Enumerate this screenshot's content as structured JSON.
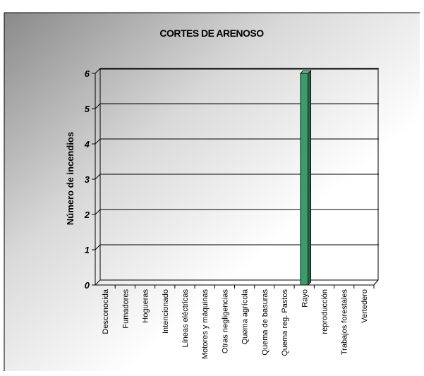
{
  "chart_data": {
    "type": "bar",
    "title": "CORTES DE ARENOSO",
    "xlabel": "",
    "ylabel": "Número de incendios",
    "ylim": [
      0,
      6
    ],
    "yticks": [
      "0",
      "1",
      "2",
      "3",
      "4",
      "5",
      "6"
    ],
    "grid": true,
    "legend": "none",
    "categories": [
      "Desconocida",
      "Fumadores",
      "Hogueras",
      "Intencionado",
      "Líneas eléctricas",
      "Motores y máquinas",
      "Otras negligencias",
      "Quema agrícola",
      "Quema de basuras",
      "Quema reg. Pastos",
      "Rayo",
      "reproducción",
      "Trabajos forestales",
      "Vertedero"
    ],
    "values": [
      0,
      0,
      0,
      0,
      0,
      0,
      0,
      0,
      0,
      0,
      6,
      0,
      0,
      0
    ],
    "colors": {
      "bar_front": "#3f9a6b",
      "bar_side": "#1f6b44",
      "bar_top": "#62b98a",
      "grid": "#000000"
    }
  }
}
